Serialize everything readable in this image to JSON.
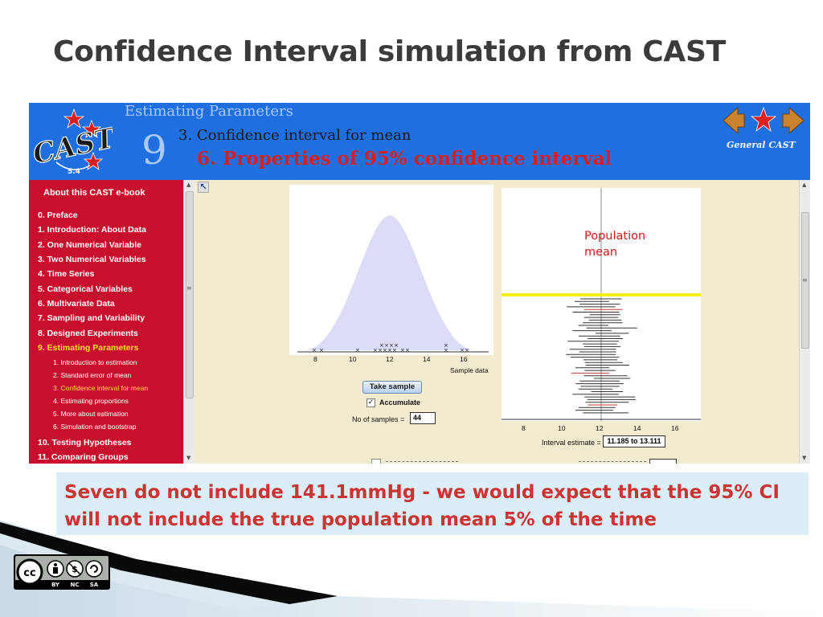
{
  "slide": {
    "title": "Confidence Interval simulation from CAST",
    "callout": "Seven do not include 141.1mmHg - we would expect that the 95% CI will not include the true population mean 5% of the time",
    "annotation": "Population mean"
  },
  "cast": {
    "logo_text": "CAST",
    "version": "5.4",
    "section": "Estimating Parameters",
    "chapter_number": "9",
    "subsection": "3. Confidence interval for mean",
    "page_title": "6. Properties of 95% confidence interval",
    "general_label": "General CAST"
  },
  "sidebar": {
    "header": "About this CAST e-book",
    "items": [
      {
        "label": "0. Preface"
      },
      {
        "label": "1. Introduction: About Data"
      },
      {
        "label": "2. One Numerical Variable"
      },
      {
        "label": "3. Two Numerical Variables"
      },
      {
        "label": "4. Time Series"
      },
      {
        "label": "5. Categorical Variables"
      },
      {
        "label": "6. Multivariate Data"
      },
      {
        "label": "7. Sampling and Variability"
      },
      {
        "label": "8. Designed Experiments"
      },
      {
        "label": "9. Estimating Parameters"
      }
    ],
    "subitems": [
      {
        "label": "1. Introduction to estimation"
      },
      {
        "label": "2. Standard error of mean"
      },
      {
        "label": "3. Confidence interval for mean"
      },
      {
        "label": "4. Estimating proportions"
      },
      {
        "label": "5. More about estimation"
      },
      {
        "label": "6. Simulation and bootstrap"
      }
    ],
    "after_items": [
      {
        "label": "10. Testing Hypotheses"
      },
      {
        "label": "11. Comparing Groups"
      }
    ]
  },
  "applet": {
    "dist_ticks": [
      "8",
      "10",
      "12",
      "14",
      "16"
    ],
    "dist_axis_label": "Sample data",
    "ci_ticks": [
      "8",
      "10",
      "12",
      "14",
      "16"
    ],
    "take_sample_label": "Take sample",
    "accumulate_label": "Accumulate",
    "accumulate_checked": "✓",
    "num_samples_label": "No of samples =",
    "num_samples_value": "44",
    "interval_label": "Interval estimate =",
    "interval_value": "11.185 to 13.111"
  },
  "license": {
    "cc": "cc",
    "terms": [
      "BY",
      "NC",
      "SA"
    ]
  },
  "colors": {
    "banner_blue": "#1f6fe0",
    "sidebar_red": "#c8102e",
    "active_yellow": "#ffdc3a",
    "callout_bg": "#dbeef5",
    "callout_text": "#cc3333",
    "curve_fill": "#dcdcf7",
    "highlight_yellow": "#f4ee1a"
  }
}
